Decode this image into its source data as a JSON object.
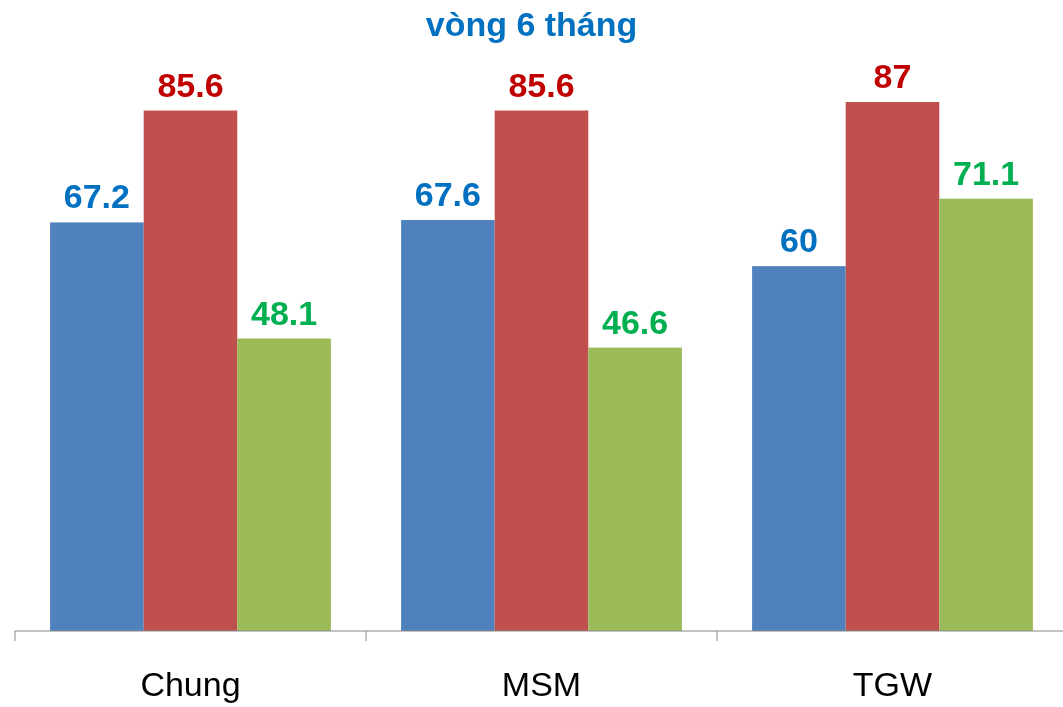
{
  "chart_data": {
    "type": "bar",
    "title": "vòng 6 tháng",
    "categories": [
      "Chung",
      "MSM",
      "TGW"
    ],
    "series": [
      {
        "color": "#4f81bd",
        "values": [
          67.2,
          67.6,
          60
        ]
      },
      {
        "color": "#c0504d",
        "values": [
          85.6,
          85.6,
          87
        ]
      },
      {
        "color": "#9bbb59",
        "values": [
          48.1,
          46.6,
          71.1
        ]
      }
    ],
    "data_labels": true
  }
}
